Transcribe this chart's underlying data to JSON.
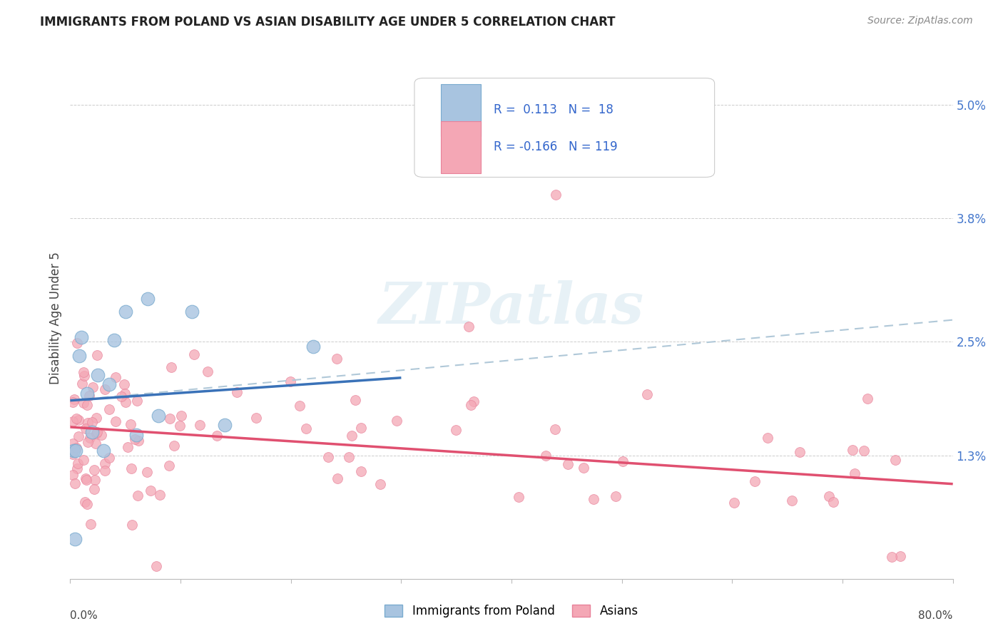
{
  "title": "IMMIGRANTS FROM POLAND VS ASIAN DISABILITY AGE UNDER 5 CORRELATION CHART",
  "source": "Source: ZipAtlas.com",
  "ylabel": "Disability Age Under 5",
  "legend_label1": "Immigrants from Poland",
  "legend_label2": "Asians",
  "r1": "0.113",
  "n1": "18",
  "r2": "-0.166",
  "n2": "119",
  "color_poland_fill": "#A8C4E0",
  "color_poland_edge": "#7AABCF",
  "color_asian_fill": "#F4A7B5",
  "color_asian_edge": "#E8829A",
  "color_trend_poland": "#3A72B8",
  "color_trend_asian": "#E05070",
  "color_trend_dashed": "#B0C8D8",
  "ytick_values": [
    1.3,
    2.5,
    3.8,
    5.0
  ],
  "ytick_labels": [
    "1.3%",
    "2.5%",
    "3.8%",
    "5.0%"
  ],
  "xmin": 0.0,
  "xmax": 80.0,
  "ymin": 0.0,
  "ymax": 5.5,
  "poland_trend_x0": 0.0,
  "poland_trend_y0": 1.88,
  "poland_trend_x1": 30.0,
  "poland_trend_y1": 2.12,
  "dashed_trend_x0": 0.0,
  "dashed_trend_y0": 1.88,
  "dashed_trend_x1": 80.0,
  "dashed_trend_y1": 2.73,
  "asian_trend_x0": 0.0,
  "asian_trend_y0": 1.6,
  "asian_trend_x1": 80.0,
  "asian_trend_y1": 1.0,
  "watermark_text": "ZIPatlas",
  "background_color": "#FFFFFF",
  "grid_color": "#CCCCCC",
  "title_color": "#222222",
  "source_color": "#888888",
  "axis_label_color": "#444444",
  "right_tick_color": "#4477CC"
}
